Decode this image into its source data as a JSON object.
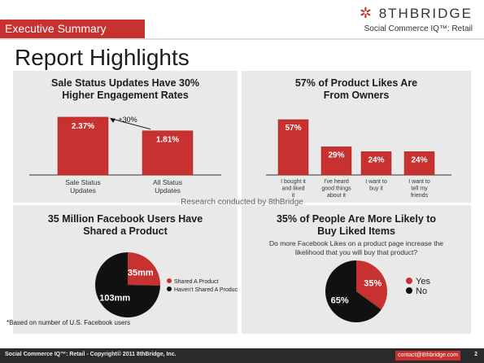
{
  "header": {
    "section_tab": "Executive Summary",
    "brand_logo": "8THBRIDGE",
    "brand_subtitle": "Social Commerce IQ™: Retail",
    "page_title": "Report Highlights"
  },
  "colors": {
    "accent": "#c7312f",
    "dark": "#111111",
    "panel": "#e9e9e9"
  },
  "research_note": "Research conducted by 8thBridge",
  "footnote": "*Based on number of U.S. Facebook users",
  "footer": {
    "copyright": "Social Commerce IQ™: Retail - Copyright© 2011 8thBridge, Inc.",
    "contact": "contact@8thbridge.com",
    "page_number": "2"
  },
  "chart_data": [
    {
      "type": "bar",
      "title": "Sale Status Updates Have 30% Higher Engagement Rates",
      "categories": [
        "Sale Status Updates",
        "All Status Updates"
      ],
      "values": [
        2.37,
        1.81
      ],
      "data_labels": [
        "2.37%",
        "1.81%"
      ],
      "annotation": "+30%",
      "ylim": [
        0,
        2.6
      ]
    },
    {
      "type": "bar",
      "title": "57% of Product Likes Are From Owners",
      "categories": [
        "I bought it and liked it",
        "I've heard good things about it",
        "I want to buy it",
        "I want to tell my friends"
      ],
      "values": [
        57,
        29,
        24,
        24
      ],
      "data_labels": [
        "57%",
        "29%",
        "24%",
        "24%"
      ],
      "ylim": [
        0,
        62
      ]
    },
    {
      "type": "pie",
      "title": "35 Million Facebook Users Have Shared a Product",
      "labels": [
        "Shared A Product",
        "Haven't Shared A Product"
      ],
      "values": [
        35,
        103
      ],
      "data_labels": [
        "35mm",
        "103mm"
      ],
      "colors": [
        "#c7312f",
        "#111111"
      ]
    },
    {
      "type": "pie",
      "title": "35% of People Are More Likely to Buy Liked Items",
      "question": "Do more Facebook Likes on a product page increase the likelihood that you will buy that product?",
      "labels": [
        "Yes",
        "No"
      ],
      "values": [
        35,
        65
      ],
      "data_labels": [
        "35%",
        "65%"
      ],
      "colors": [
        "#c7312f",
        "#111111"
      ]
    }
  ]
}
